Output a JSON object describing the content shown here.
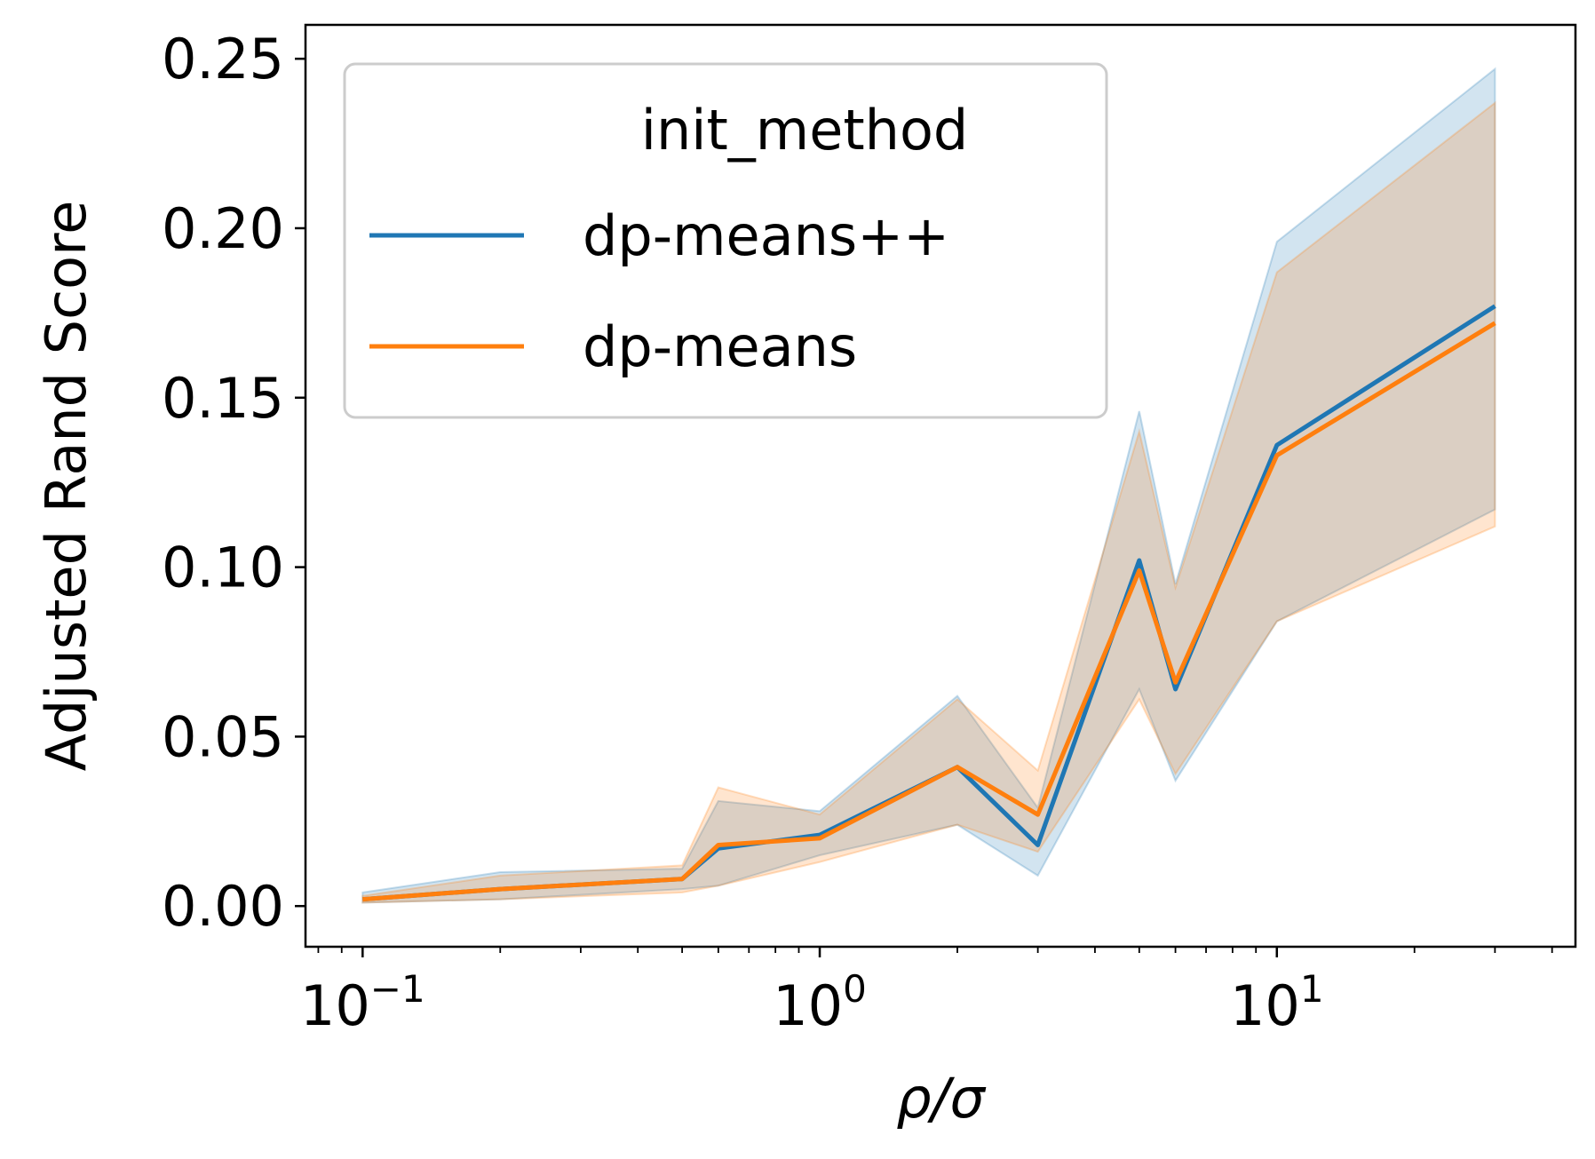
{
  "chart_data": {
    "type": "line",
    "xlabel": "ρ/σ",
    "ylabel": "Adjusted Rand Score",
    "xscale": "log",
    "xlim": [
      0.075,
      45
    ],
    "ylim": [
      -0.012,
      0.26
    ],
    "grid": false,
    "legend": {
      "title": "init_method",
      "placement": "top-left"
    },
    "x": [
      0.1,
      0.2,
      0.5,
      0.6,
      1,
      2,
      3,
      5,
      6,
      10,
      30
    ],
    "x_ticks": [
      {
        "value": 0.1,
        "base": "10",
        "exp": "−1"
      },
      {
        "value": 1,
        "base": "10",
        "exp": "0"
      },
      {
        "value": 10,
        "base": "10",
        "exp": "1"
      }
    ],
    "y_ticks": [
      {
        "value": 0.0,
        "label": "0.00"
      },
      {
        "value": 0.05,
        "label": "0.05"
      },
      {
        "value": 0.1,
        "label": "0.10"
      },
      {
        "value": 0.15,
        "label": "0.15"
      },
      {
        "value": 0.2,
        "label": "0.20"
      },
      {
        "value": 0.25,
        "label": "0.25"
      }
    ],
    "series": [
      {
        "name": "dp-means++",
        "color": "#1f77b4",
        "values": [
          0.002,
          0.005,
          0.008,
          0.017,
          0.021,
          0.041,
          0.018,
          0.102,
          0.064,
          0.136,
          0.177
        ],
        "lower": [
          0.001,
          0.002,
          0.005,
          0.006,
          0.015,
          0.024,
          0.009,
          0.064,
          0.037,
          0.084,
          0.117
        ],
        "upper": [
          0.004,
          0.01,
          0.011,
          0.031,
          0.028,
          0.062,
          0.029,
          0.146,
          0.095,
          0.196,
          0.247
        ]
      },
      {
        "name": "dp-means",
        "color": "#ff7f0e",
        "values": [
          0.002,
          0.005,
          0.008,
          0.018,
          0.02,
          0.041,
          0.027,
          0.099,
          0.066,
          0.133,
          0.172
        ],
        "lower": [
          0.001,
          0.002,
          0.004,
          0.006,
          0.013,
          0.024,
          0.016,
          0.061,
          0.039,
          0.084,
          0.112
        ],
        "upper": [
          0.003,
          0.009,
          0.012,
          0.035,
          0.027,
          0.061,
          0.04,
          0.14,
          0.094,
          0.187,
          0.237
        ]
      }
    ]
  }
}
